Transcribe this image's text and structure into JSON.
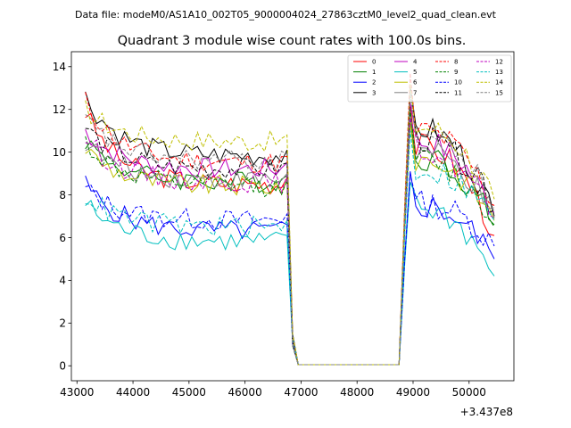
{
  "chart_data": {
    "type": "line",
    "suptitle": "Data file: modeM0/AS1A10_002T05_9000004024_27863cztM0_level2_quad_clean.evt",
    "title": "Quadrant 3 module wise count rates with 100.0s bins.",
    "xlabel": "",
    "ylabel": "",
    "offset_label": "+3.437e8",
    "xlim": [
      42900,
      50800
    ],
    "ylim": [
      -0.7,
      14.7
    ],
    "xticks": [
      43000,
      44000,
      45000,
      46000,
      47000,
      48000,
      49000,
      50000
    ],
    "xtick_labels": [
      "43000",
      "44000",
      "45000",
      "46000",
      "47000",
      "48000",
      "49000",
      "50000"
    ],
    "yticks": [
      0,
      2,
      4,
      6,
      8,
      10,
      12,
      14
    ],
    "ytick_labels": [
      "0",
      "2",
      "4",
      "6",
      "8",
      "10",
      "12",
      "14"
    ],
    "legend_position": "top-right",
    "legend_columns": 4,
    "segments": [
      {
        "start": 43150,
        "end": 46750,
        "step": 100
      },
      {
        "start": 46850,
        "end": 48750,
        "step": 100,
        "flat": 0.05
      },
      {
        "start": 48850,
        "end": 50450,
        "step": 100
      }
    ],
    "series": [
      {
        "name": "0",
        "color": "#ff0000",
        "dash": false,
        "level": 8.5,
        "start": 11.9,
        "peak": 12.2,
        "recovered": 10.3,
        "end": 6.1
      },
      {
        "name": "1",
        "color": "#008000",
        "dash": false,
        "level": 8.6,
        "start": 10.6,
        "peak": 11.5,
        "recovered": 9.8,
        "end": 6.6
      },
      {
        "name": "2",
        "color": "#0000ff",
        "dash": false,
        "level": 6.3,
        "start": 8.5,
        "peak": 9.1,
        "recovered": 7.5,
        "end": 5.0
      },
      {
        "name": "3",
        "color": "#000000",
        "dash": false,
        "level": 9.8,
        "start": 12.6,
        "peak": 13.1,
        "recovered": 11.1,
        "end": 7.0
      },
      {
        "name": "4",
        "color": "#bf00bf",
        "dash": false,
        "level": 9.2,
        "start": 11.0,
        "peak": 12.3,
        "recovered": 10.5,
        "end": 7.2
      },
      {
        "name": "5",
        "color": "#00bfbf",
        "dash": false,
        "level": 5.8,
        "start": 7.6,
        "peak": 8.6,
        "recovered": 7.4,
        "end": 4.2
      },
      {
        "name": "6",
        "color": "#bfbf00",
        "dash": false,
        "level": 8.4,
        "start": 10.2,
        "peak": 11.4,
        "recovered": 9.7,
        "end": 6.8
      },
      {
        "name": "7",
        "color": "#808080",
        "dash": false,
        "level": 8.7,
        "start": 10.5,
        "peak": 11.9,
        "recovered": 10.0,
        "end": 6.9
      },
      {
        "name": "8",
        "color": "#ff0000",
        "dash": true,
        "level": 9.5,
        "start": 12.4,
        "peak": 13.7,
        "recovered": 11.0,
        "end": 7.5
      },
      {
        "name": "9",
        "color": "#008000",
        "dash": true,
        "level": 8.4,
        "start": 10.5,
        "peak": 12.0,
        "recovered": 9.6,
        "end": 6.5
      },
      {
        "name": "10",
        "color": "#0000ff",
        "dash": true,
        "level": 6.8,
        "start": 8.3,
        "peak": 9.0,
        "recovered": 7.6,
        "end": 5.6
      },
      {
        "name": "11",
        "color": "#000000",
        "dash": true,
        "level": 9.2,
        "start": 11.2,
        "peak": 12.7,
        "recovered": 10.6,
        "end": 7.3
      },
      {
        "name": "12",
        "color": "#bf00bf",
        "dash": true,
        "level": 8.6,
        "start": 10.7,
        "peak": 11.6,
        "recovered": 10.1,
        "end": 6.9
      },
      {
        "name": "13",
        "color": "#00bfbf",
        "dash": true,
        "level": 6.5,
        "start": 8.0,
        "peak": 11.0,
        "recovered": 9.2,
        "end": 6.8
      },
      {
        "name": "14",
        "color": "#bfbf00",
        "dash": true,
        "level": 10.5,
        "start": 12.0,
        "peak": 13.2,
        "recovered": 11.2,
        "end": 7.8
      },
      {
        "name": "15",
        "color": "#808080",
        "dash": true,
        "level": 9.6,
        "start": 11.5,
        "peak": 12.8,
        "recovered": 10.8,
        "end": 7.4
      }
    ]
  }
}
